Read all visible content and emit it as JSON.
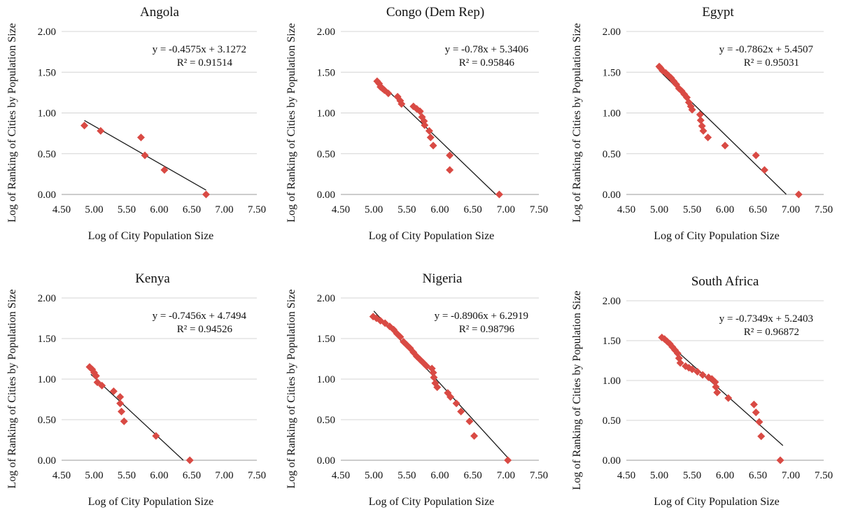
{
  "figure": {
    "colors": {
      "marker": "#d94a44",
      "trendline": "#1a1a1a",
      "grid": "#d4d4d4"
    },
    "marker_shape": "diamond"
  },
  "chart_data": [
    {
      "type": "scatter",
      "title": "Angola",
      "xlabel": "Log of City Population Size",
      "ylabel": "Log of Ranking of Cities by Population Size",
      "xlim": [
        4.5,
        7.5
      ],
      "ylim": [
        0,
        2
      ],
      "xticks": [
        "4.50",
        "5.00",
        "5.50",
        "6.00",
        "6.50",
        "7.00",
        "7.50"
      ],
      "yticks": [
        "0.00",
        "0.50",
        "1.00",
        "1.50",
        "2.00"
      ],
      "grid": "horizontal",
      "equation": "y = -0.4575x + 3.1272",
      "r2": "R² = 0.91514",
      "trendline": {
        "slope": -0.4575,
        "intercept": 3.1272,
        "x_from": 4.85,
        "x_to": 6.72
      },
      "points": [
        [
          4.85,
          0.845
        ],
        [
          5.1,
          0.78
        ],
        [
          5.72,
          0.7
        ],
        [
          5.78,
          0.48
        ],
        [
          6.08,
          0.3
        ],
        [
          6.72,
          0.0
        ]
      ]
    },
    {
      "type": "scatter",
      "title": "Congo (Dem Rep)",
      "xlabel": "Log of City Population Size",
      "ylabel": "Log of Ranking of Cities by Population Size",
      "xlim": [
        4.5,
        7.5
      ],
      "ylim": [
        0,
        2
      ],
      "xticks": [
        "4.50",
        "5.00",
        "5.50",
        "6.00",
        "6.50",
        "7.00",
        "7.50"
      ],
      "yticks": [
        "0.00",
        "0.50",
        "1.00",
        "1.50",
        "2.00"
      ],
      "grid": "horizontal",
      "equation": "y = -0.78x + 5.3406",
      "r2": "R² = 0.95846",
      "trendline": {
        "slope": -0.78,
        "intercept": 5.3406,
        "x_from": 5.05,
        "x_to": 6.85
      },
      "points": [
        [
          5.05,
          1.39
        ],
        [
          5.08,
          1.36
        ],
        [
          5.1,
          1.32
        ],
        [
          5.13,
          1.3
        ],
        [
          5.16,
          1.28
        ],
        [
          5.22,
          1.24
        ],
        [
          5.36,
          1.2
        ],
        [
          5.4,
          1.15
        ],
        [
          5.42,
          1.11
        ],
        [
          5.6,
          1.08
        ],
        [
          5.65,
          1.05
        ],
        [
          5.7,
          1.02
        ],
        [
          5.73,
          0.95
        ],
        [
          5.76,
          0.9
        ],
        [
          5.77,
          0.85
        ],
        [
          5.84,
          0.78
        ],
        [
          5.86,
          0.7
        ],
        [
          5.9,
          0.6
        ],
        [
          6.15,
          0.48
        ],
        [
          6.15,
          0.3
        ],
        [
          6.9,
          0.0
        ]
      ]
    },
    {
      "type": "scatter",
      "title": "Egypt",
      "xlabel": "Log of City Population Size",
      "ylabel": "Log of Ranking of Cities by Population Size",
      "xlim": [
        4.5,
        7.5
      ],
      "ylim": [
        0,
        2
      ],
      "xticks": [
        "4.50",
        "5.00",
        "5.50",
        "6.00",
        "6.50",
        "7.00",
        "7.50"
      ],
      "yticks": [
        "0.00",
        "0.50",
        "1.00",
        "1.50",
        "2.00"
      ],
      "grid": "horizontal",
      "equation": "y = -0.7862x + 5.4507",
      "r2": "R² = 0.95031",
      "trendline": {
        "slope": -0.7862,
        "intercept": 5.4507,
        "x_from": 5.0,
        "x_to": 6.93
      },
      "points": [
        [
          5.0,
          1.57
        ],
        [
          5.02,
          1.55
        ],
        [
          5.05,
          1.52
        ],
        [
          5.1,
          1.49
        ],
        [
          5.14,
          1.46
        ],
        [
          5.18,
          1.43
        ],
        [
          5.22,
          1.39
        ],
        [
          5.26,
          1.35
        ],
        [
          5.3,
          1.3
        ],
        [
          5.34,
          1.27
        ],
        [
          5.38,
          1.23
        ],
        [
          5.42,
          1.19
        ],
        [
          5.45,
          1.13
        ],
        [
          5.48,
          1.08
        ],
        [
          5.5,
          1.04
        ],
        [
          5.62,
          0.98
        ],
        [
          5.63,
          0.91
        ],
        [
          5.65,
          0.84
        ],
        [
          5.67,
          0.78
        ],
        [
          5.74,
          0.7
        ],
        [
          6.0,
          0.6
        ],
        [
          6.47,
          0.48
        ],
        [
          6.6,
          0.3
        ],
        [
          7.12,
          0.0
        ]
      ]
    },
    {
      "type": "scatter",
      "title": "Kenya",
      "xlabel": "Log of City Population Size",
      "ylabel": "Log of Ranking of Cities by Population Size",
      "xlim": [
        4.5,
        7.5
      ],
      "ylim": [
        0,
        2
      ],
      "xticks": [
        "4.50",
        "5.00",
        "5.50",
        "6.00",
        "6.50",
        "7.00",
        "7.50"
      ],
      "yticks": [
        "0.00",
        "0.50",
        "1.00",
        "1.50",
        "2.00"
      ],
      "grid": "horizontal",
      "equation": "y = -0.7456x + 4.7494",
      "r2": "R² = 0.94526",
      "trendline": {
        "slope": -0.7456,
        "intercept": 4.7494,
        "x_from": 4.95,
        "x_to": 6.37
      },
      "points": [
        [
          4.93,
          1.15
        ],
        [
          4.97,
          1.12
        ],
        [
          5.0,
          1.08
        ],
        [
          5.03,
          1.04
        ],
        [
          5.05,
          0.96
        ],
        [
          5.12,
          0.92
        ],
        [
          5.3,
          0.85
        ],
        [
          5.4,
          0.78
        ],
        [
          5.4,
          0.7
        ],
        [
          5.42,
          0.6
        ],
        [
          5.46,
          0.48
        ],
        [
          5.95,
          0.3
        ],
        [
          6.47,
          0.0
        ]
      ]
    },
    {
      "type": "scatter",
      "title": "Nigeria",
      "xlabel": "Log of City Population Size",
      "ylabel": "Log of Ranking of Cities by Population Size",
      "xlim": [
        4.5,
        7.5
      ],
      "ylim": [
        0,
        2
      ],
      "xticks": [
        "4.50",
        "5.00",
        "5.50",
        "6.00",
        "6.50",
        "7.00",
        "7.50"
      ],
      "yticks": [
        "0.00",
        "0.50",
        "1.00",
        "1.50",
        "2.00"
      ],
      "grid": "horizontal",
      "equation": "y = -0.8906x + 6.2919",
      "r2": "R² = 0.98796",
      "trendline": {
        "slope": -0.8906,
        "intercept": 6.2919,
        "x_from": 5.0,
        "x_to": 7.06
      },
      "points": [
        [
          4.99,
          1.77
        ],
        [
          5.04,
          1.75
        ],
        [
          5.1,
          1.72
        ],
        [
          5.17,
          1.69
        ],
        [
          5.24,
          1.65
        ],
        [
          5.3,
          1.61
        ],
        [
          5.35,
          1.56
        ],
        [
          5.4,
          1.52
        ],
        [
          5.45,
          1.46
        ],
        [
          5.5,
          1.42
        ],
        [
          5.55,
          1.38
        ],
        [
          5.6,
          1.33
        ],
        [
          5.65,
          1.28
        ],
        [
          5.7,
          1.24
        ],
        [
          5.75,
          1.2
        ],
        [
          5.8,
          1.16
        ],
        [
          5.88,
          1.13
        ],
        [
          5.9,
          1.08
        ],
        [
          5.91,
          1.02
        ],
        [
          5.93,
          0.95
        ],
        [
          5.96,
          0.9
        ],
        [
          6.12,
          0.83
        ],
        [
          6.16,
          0.78
        ],
        [
          6.25,
          0.7
        ],
        [
          6.32,
          0.6
        ],
        [
          6.45,
          0.48
        ],
        [
          6.52,
          0.3
        ],
        [
          7.03,
          0.0
        ]
      ]
    },
    {
      "type": "scatter",
      "title": "South Africa",
      "xlabel": "Log of City Population Size",
      "ylabel": "Log of Ranking of Cities by Population Size",
      "xlim": [
        4.5,
        7.5
      ],
      "ylim": [
        0,
        2
      ],
      "xticks": [
        "4.50",
        "5.00",
        "5.50",
        "6.00",
        "6.50",
        "7.00",
        "7.50"
      ],
      "yticks": [
        "0.00",
        "0.50",
        "1.00",
        "1.50",
        "2.00"
      ],
      "grid": "horizontal",
      "equation": "y = -0.7349x + 5.2403",
      "r2": "R² = 0.96872",
      "trendline": {
        "slope": -0.7349,
        "intercept": 5.2403,
        "x_from": 5.05,
        "x_to": 6.88
      },
      "points": [
        [
          5.04,
          1.54
        ],
        [
          5.08,
          1.52
        ],
        [
          5.12,
          1.49
        ],
        [
          5.16,
          1.46
        ],
        [
          5.2,
          1.42
        ],
        [
          5.24,
          1.38
        ],
        [
          5.28,
          1.34
        ],
        [
          5.3,
          1.28
        ],
        [
          5.32,
          1.22
        ],
        [
          5.4,
          1.18
        ],
        [
          5.45,
          1.16
        ],
        [
          5.5,
          1.14
        ],
        [
          5.58,
          1.11
        ],
        [
          5.66,
          1.07
        ],
        [
          5.75,
          1.04
        ],
        [
          5.8,
          1.02
        ],
        [
          5.85,
          0.98
        ],
        [
          5.86,
          0.92
        ],
        [
          5.88,
          0.85
        ],
        [
          6.05,
          0.78
        ],
        [
          6.44,
          0.7
        ],
        [
          6.47,
          0.6
        ],
        [
          6.52,
          0.48
        ],
        [
          6.55,
          0.3
        ],
        [
          6.84,
          0.0
        ]
      ]
    }
  ]
}
